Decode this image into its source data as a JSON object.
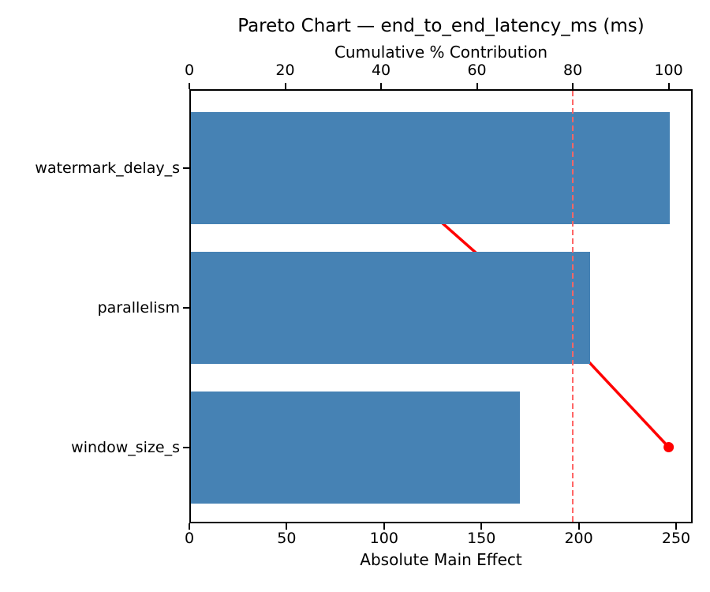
{
  "title": "Pareto Chart — end_to_end_latency_ms (ms)",
  "chart_data": {
    "type": "bar",
    "subtype": "pareto",
    "orientation": "horizontal",
    "title": "Pareto Chart — end_to_end_latency_ms (ms)",
    "categories": [
      "watermark_delay_s",
      "parallelism",
      "window_size_s"
    ],
    "values": [
      246,
      205,
      169
    ],
    "series": [
      {
        "name": "absolute-main-effect-bars",
        "values": [
          246,
          205,
          169
        ]
      },
      {
        "name": "cumulative-percent-line",
        "values": [
          39.7,
          72.7,
          100.0
        ]
      }
    ],
    "cumulative_pct": [
      39.7,
      72.7,
      100.0
    ],
    "threshold_pct": 80,
    "grid": false,
    "legend": "none",
    "bottom_axis": {
      "label": "Absolute Main Effect",
      "ticks": [
        0,
        50,
        100,
        150,
        200,
        250
      ],
      "range": [
        0,
        258.5
      ]
    },
    "top_axis": {
      "label": "Cumulative % Contribution",
      "ticks": [
        0,
        20,
        40,
        60,
        80,
        100
      ],
      "range": [
        0,
        105
      ]
    },
    "colors": {
      "bar": "#4682B4",
      "line": "#FF0000",
      "marker": "#FF0000",
      "threshold": "#FF6666",
      "axis": "#000000",
      "background": "#FFFFFF"
    }
  }
}
